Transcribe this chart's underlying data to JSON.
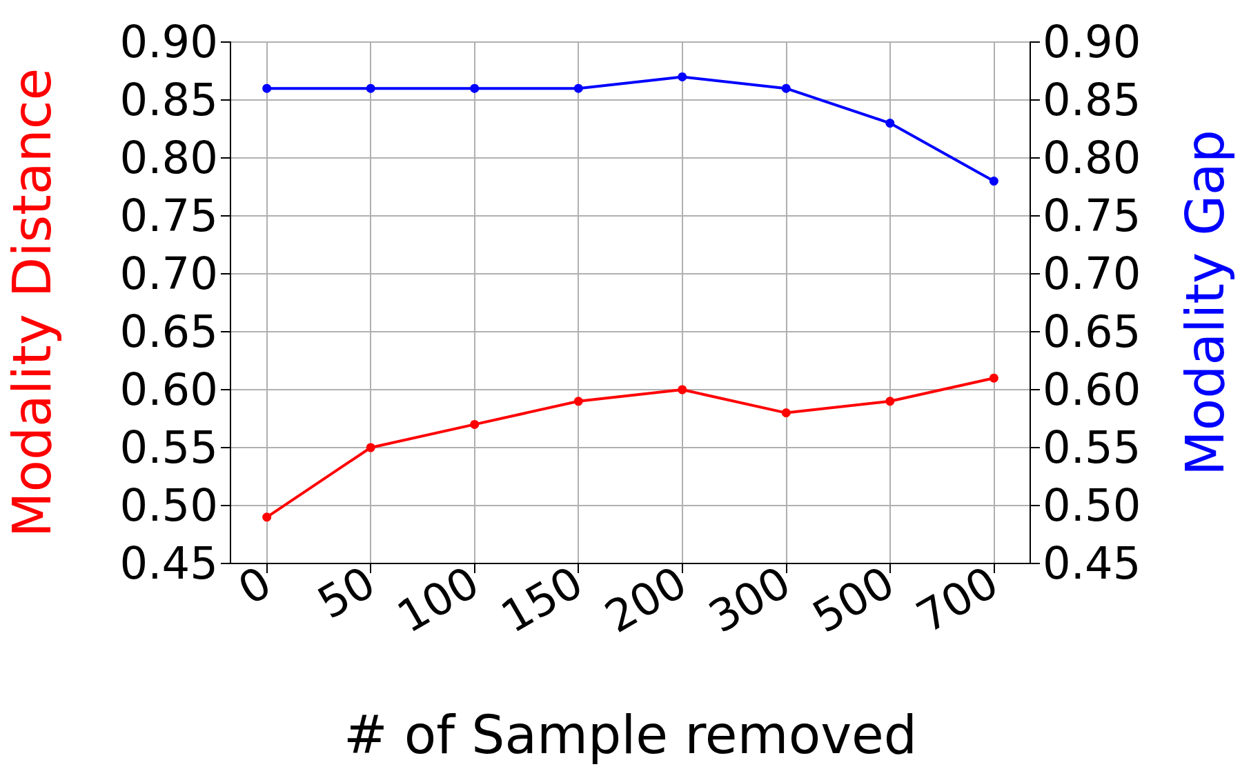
{
  "chart_data": {
    "type": "line",
    "xlabel": "# of Sample removed",
    "ylabel": "Modality Distance",
    "y2label": "Modality Gap",
    "categories": [
      "0",
      "50",
      "100",
      "150",
      "200",
      "300",
      "500",
      "700"
    ],
    "series": [
      {
        "color": "#ff0000",
        "values": [
          0.49,
          0.55,
          0.57,
          0.59,
          0.6,
          0.58,
          0.59,
          0.61
        ]
      },
      {
        "color": "#0000ff",
        "axis": "y2",
        "values": [
          0.86,
          0.86,
          0.86,
          0.86,
          0.87,
          0.86,
          0.83,
          0.78
        ]
      }
    ],
    "ylim": [
      0.45,
      0.9
    ],
    "yticks": [
      {
        "value": 0.45,
        "label": "0.45"
      },
      {
        "value": 0.5,
        "label": "0.50"
      },
      {
        "value": 0.55,
        "label": "0.55"
      },
      {
        "value": 0.6,
        "label": "0.60"
      },
      {
        "value": 0.65,
        "label": "0.65"
      },
      {
        "value": 0.7,
        "label": "0.70"
      },
      {
        "value": 0.75,
        "label": "0.75"
      },
      {
        "value": 0.8,
        "label": "0.80"
      },
      {
        "value": 0.85,
        "label": "0.85"
      },
      {
        "value": 0.9,
        "label": "0.90"
      }
    ],
    "y2lim": [
      0.45,
      0.9
    ],
    "y2ticks": [
      {
        "value": 0.45,
        "label": "0.45"
      },
      {
        "value": 0.5,
        "label": "0.50"
      },
      {
        "value": 0.55,
        "label": "0.55"
      },
      {
        "value": 0.6,
        "label": "0.60"
      },
      {
        "value": 0.65,
        "label": "0.65"
      },
      {
        "value": 0.7,
        "label": "0.70"
      },
      {
        "value": 0.75,
        "label": "0.75"
      },
      {
        "value": 0.8,
        "label": "0.80"
      },
      {
        "value": 0.85,
        "label": "0.85"
      },
      {
        "value": 0.9,
        "label": "0.90"
      }
    ],
    "grid": true,
    "marker": "circle",
    "line_style": "solid"
  }
}
